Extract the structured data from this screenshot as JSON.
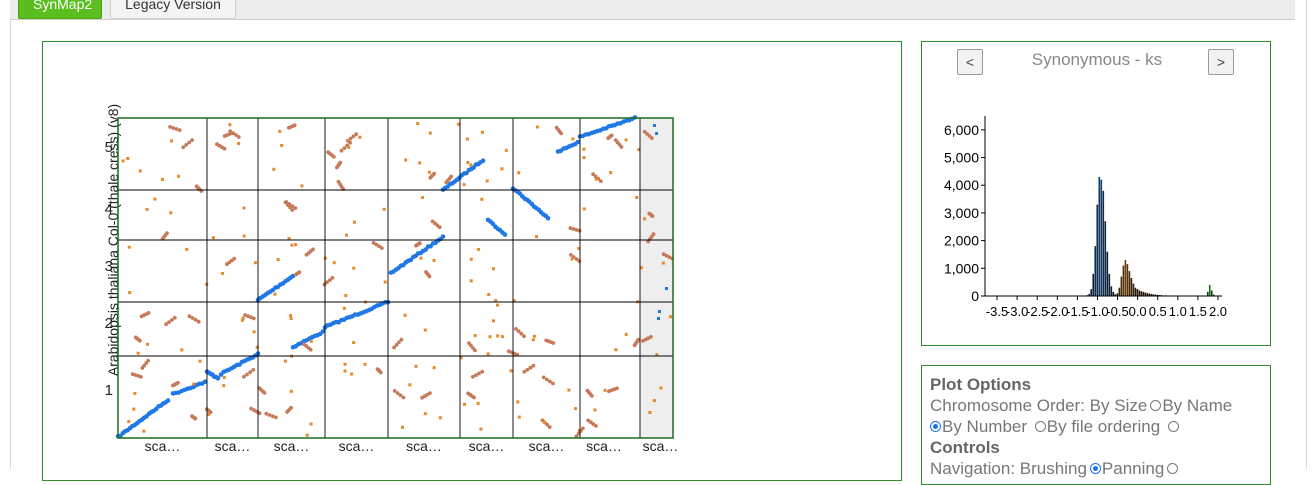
{
  "tabs": [
    {
      "label": "SynMap2",
      "active": true
    },
    {
      "label": "Legacy Version",
      "active": false
    }
  ],
  "dotplot": {
    "y_axis_label": "Arabidopsis thaliana Col-0 (thale cress) (v8)",
    "y_ticks": [
      "1",
      "2",
      "3",
      "4",
      "5"
    ],
    "x_labels": [
      "sca…",
      "sca…",
      "sca…",
      "sca…",
      "sca…",
      "sca…",
      "sca…",
      "sca…",
      "sca…"
    ],
    "colors": {
      "syntenic": "#1f78e6",
      "ortholog": "#c77a5a",
      "other": "#e8882a",
      "grid": "#000000"
    }
  },
  "histogram": {
    "prev_label": "<",
    "next_label": ">",
    "title": "Synonymous - ks",
    "y_ticks": [
      "0",
      "1,000",
      "2,000",
      "3,000",
      "4,000",
      "5,000",
      "6,000"
    ],
    "x_ticks": [
      "-3.5",
      "-3.0",
      "-2.5",
      "-2.0",
      "-1.5",
      "-1.0",
      "-0.5",
      "0.0",
      "0.5",
      "1.0",
      "1.5",
      "2.0"
    ]
  },
  "chart_data": {
    "type": "bar",
    "title": "Synonymous - ks",
    "xlabel": "",
    "ylabel": "",
    "xlim": [
      -3.8,
      2.1
    ],
    "ylim": [
      0,
      6500
    ],
    "x": [
      -1.25,
      -1.2,
      -1.15,
      -1.1,
      -1.05,
      -1.0,
      -0.95,
      -0.9,
      -0.85,
      -0.8,
      -0.75,
      -0.7,
      -0.65,
      -0.6,
      -0.55,
      -0.5,
      -0.45,
      -0.4,
      -0.35,
      -0.3,
      -0.25,
      -0.2,
      -0.15,
      -0.1,
      -0.05,
      0.0,
      0.05,
      0.1,
      0.15,
      0.2,
      0.25,
      0.3,
      0.35,
      0.4,
      0.45,
      0.5,
      0.55,
      0.6,
      0.7,
      0.8,
      0.9,
      1.0,
      1.1,
      1.2,
      1.3,
      1.4,
      1.5,
      1.6,
      1.7,
      1.75,
      1.8,
      1.85,
      1.9
    ],
    "values": [
      30,
      80,
      250,
      800,
      1800,
      3300,
      4300,
      4200,
      3800,
      2700,
      1600,
      800,
      350,
      150,
      60,
      100,
      300,
      700,
      1100,
      1300,
      1150,
      900,
      650,
      450,
      300,
      250,
      200,
      170,
      150,
      120,
      100,
      90,
      70,
      60,
      50,
      40,
      35,
      30,
      25,
      20,
      15,
      12,
      10,
      10,
      8,
      6,
      5,
      5,
      5,
      150,
      400,
      200,
      50
    ],
    "colors": [
      "#0b1d33",
      "#0b1d33",
      "#0b1d33",
      "#0b1d33",
      "#0f2a4a",
      "#0f2a4a",
      "#123a66",
      "#123a66",
      "#0f2a4a",
      "#0f2a4a",
      "#0b1d33",
      "#0b1d33",
      "#0b1d33",
      "#111111",
      "#111111",
      "#2a1705",
      "#3b2206",
      "#4a2a07",
      "#5a3208",
      "#6b3a09",
      "#5a3208",
      "#4a2a07",
      "#3b2206",
      "#3b2206",
      "#2a1705",
      "#2a1705",
      "#2a1705",
      "#221304",
      "#221304",
      "#1a0f03",
      "#1a0f03",
      "#1a0f03",
      "#141414",
      "#141414",
      "#141414",
      "#141414",
      "#141414",
      "#141414",
      "#141414",
      "#141414",
      "#141414",
      "#141414",
      "#141414",
      "#141414",
      "#141414",
      "#141414",
      "#141414",
      "#141414",
      "#141414",
      "#0f3f0f",
      "#1e6b1e",
      "#0f3f0f",
      "#0f3f0f"
    ]
  },
  "options": {
    "plot_options_title": "Plot Options",
    "chromosome_order_label": "Chromosome Order:",
    "order_by_size": "By Size",
    "order_by_name": "By Name",
    "order_by_number": "By Number",
    "order_by_file": "By file ordering",
    "order_selected": "By Number",
    "controls_title": "Controls",
    "navigation_label": "Navigation:",
    "nav_brushing": "Brushing",
    "nav_panning": "Panning",
    "nav_selected": "Panning"
  }
}
